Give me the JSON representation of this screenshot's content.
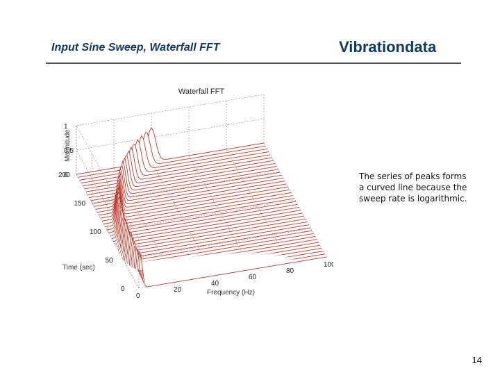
{
  "slide": {
    "title": "Input Sine Sweep, Waterfall FFT",
    "brand": "Vibrationdata",
    "page_number": "14",
    "note": "The series of peaks forms a curved line because the sweep rate is logarithmic."
  },
  "colors": {
    "title": "#0e3a66",
    "mesh": "#c0392b",
    "grid": "#888888"
  },
  "chart_data": {
    "type": "waterfall",
    "title": "Waterfall FFT",
    "xlabel": "Frequency (Hz)",
    "ylabel": "Time (sec)",
    "zlabel": "Magnitude",
    "x_ticks": [
      "0",
      "20",
      "40",
      "60",
      "80",
      "100"
    ],
    "y_ticks": [
      "0",
      "50",
      "100",
      "150",
      "200"
    ],
    "z_ticks": [
      "0",
      "0.5",
      "1"
    ],
    "xlim": [
      0,
      100
    ],
    "ylim": [
      0,
      200
    ],
    "zlim": [
      0,
      1
    ],
    "sweep": {
      "time_s": [
        0,
        200
      ],
      "freq_hz": [
        1,
        40
      ],
      "rate": "logarithmic"
    },
    "slices": 40
  }
}
